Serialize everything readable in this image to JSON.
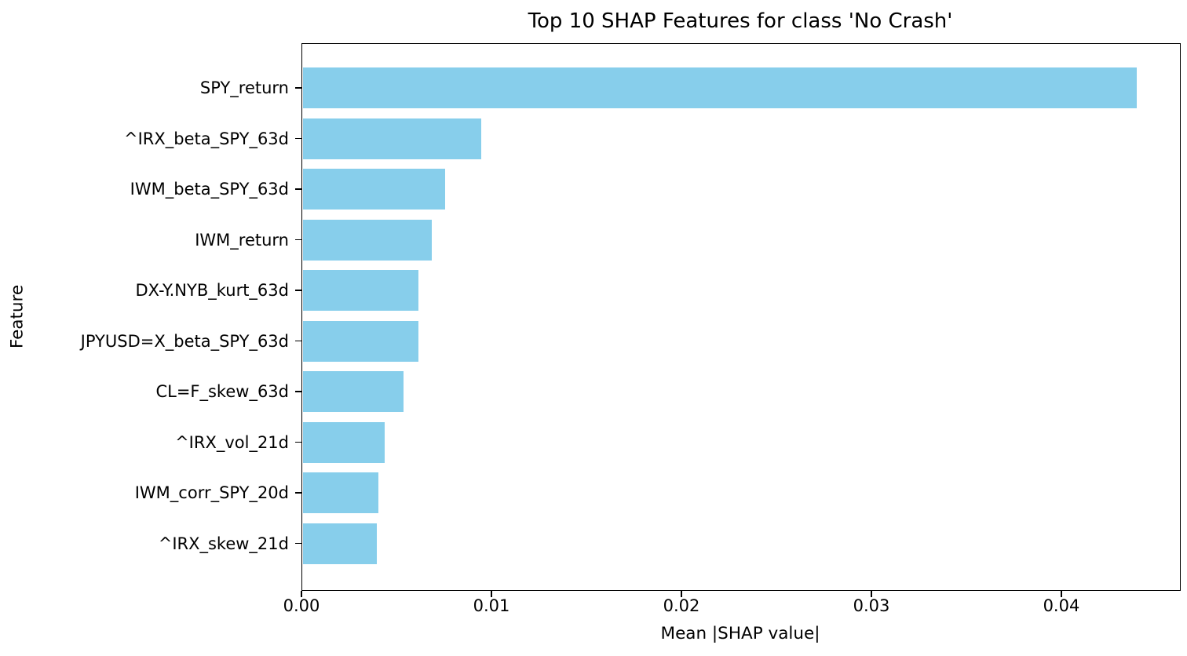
{
  "chart_data": {
    "type": "bar",
    "orientation": "horizontal",
    "title": "Top 10 SHAP Features for class 'No Crash'",
    "xlabel": "Mean |SHAP value|",
    "ylabel": "Feature",
    "categories": [
      "SPY_return",
      "^IRX_beta_SPY_63d",
      "IWM_beta_SPY_63d",
      "IWM_return",
      "DX-Y.NYB_kurt_63d",
      "JPYUSD=X_beta_SPY_63d",
      "CL=F_skew_63d",
      "^IRX_vol_21d",
      "IWM_corr_SPY_20d",
      "^IRX_skew_21d"
    ],
    "values": [
      0.0439,
      0.0094,
      0.0075,
      0.0068,
      0.0061,
      0.0061,
      0.0053,
      0.0043,
      0.004,
      0.0039
    ],
    "xticks": {
      "values": [
        0.0,
        0.01,
        0.02,
        0.03,
        0.04
      ],
      "labels": [
        "0.00",
        "0.01",
        "0.02",
        "0.03",
        "0.04"
      ]
    },
    "xlim": [
      0,
      0.0462
    ],
    "grid": false,
    "legend": null,
    "bar_color": "#87CEEB",
    "spine_color": "#000000",
    "text_color": "#000000"
  }
}
